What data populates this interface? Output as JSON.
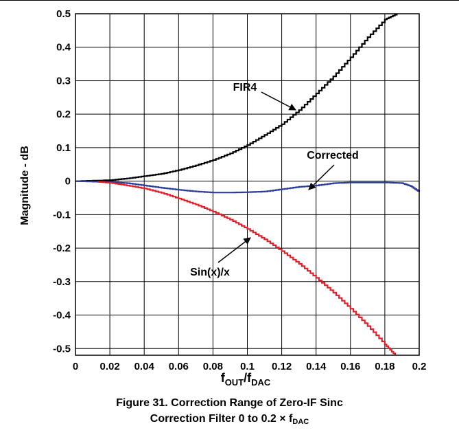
{
  "chart_data": {
    "type": "line",
    "xlabel": {
      "main": "f",
      "sub1": "OUT",
      "sep": "/f",
      "sub2": "DAC"
    },
    "ylabel": "Magnitude - dB",
    "xlim": [
      0,
      0.2
    ],
    "ylim": [
      -0.52,
      0.5
    ],
    "grid": true,
    "x_ticks": [
      "0",
      "0.02",
      "0.04",
      "0.06",
      "0.08",
      "0.1",
      "0.12",
      "0.14",
      "0.16",
      "0.18",
      "0.2"
    ],
    "y_ticks": [
      "0.5",
      "0.4",
      "0.3",
      "0.2",
      "0.1",
      "0",
      "-0.1",
      "-0.2",
      "-0.3",
      "-0.4",
      "-0.5"
    ],
    "series": [
      {
        "name": "FIR4",
        "color": "#000000",
        "step": true,
        "x": [
          0,
          0.02,
          0.03,
          0.04,
          0.05,
          0.06,
          0.07,
          0.08,
          0.09,
          0.1,
          0.11,
          0.12,
          0.13,
          0.14,
          0.15,
          0.16,
          0.17,
          0.18,
          0.187
        ],
        "y": [
          0,
          0.003,
          0.008,
          0.015,
          0.022,
          0.033,
          0.047,
          0.063,
          0.083,
          0.108,
          0.138,
          0.17,
          0.212,
          0.262,
          0.313,
          0.37,
          0.43,
          0.483,
          0.5
        ]
      },
      {
        "name": "Corrected",
        "color": "#2b3f9a",
        "step": true,
        "x": [
          0,
          0.02,
          0.03,
          0.04,
          0.05,
          0.06,
          0.07,
          0.08,
          0.09,
          0.1,
          0.11,
          0.12,
          0.13,
          0.14,
          0.15,
          0.16,
          0.17,
          0.18,
          0.19,
          0.195,
          0.2
        ],
        "y": [
          0,
          -0.003,
          -0.006,
          -0.013,
          -0.02,
          -0.026,
          -0.031,
          -0.034,
          -0.034,
          -0.033,
          -0.031,
          -0.024,
          -0.017,
          -0.013,
          -0.006,
          -0.004,
          -0.004,
          -0.004,
          -0.006,
          -0.015,
          -0.032
        ]
      },
      {
        "name": "Sin(x)/x",
        "color": "#e0202a",
        "step": true,
        "x": [
          0.013,
          0.02,
          0.03,
          0.04,
          0.05,
          0.06,
          0.07,
          0.08,
          0.09,
          0.1,
          0.11,
          0.12,
          0.13,
          0.14,
          0.15,
          0.16,
          0.17,
          0.18,
          0.186
        ],
        "y": [
          -0.002,
          -0.005,
          -0.013,
          -0.022,
          -0.035,
          -0.052,
          -0.07,
          -0.091,
          -0.115,
          -0.143,
          -0.174,
          -0.209,
          -0.247,
          -0.289,
          -0.333,
          -0.381,
          -0.433,
          -0.488,
          -0.52
        ]
      }
    ],
    "annotations": [
      {
        "text": "FIR4",
        "target": "FIR4"
      },
      {
        "text": "Corrected",
        "target": "Corrected"
      },
      {
        "text": "Sin(x)/x",
        "target": "Sin(x)/x"
      }
    ]
  },
  "caption": {
    "line1": "Figure 31. Correction Range of Zero-IF Sinc",
    "line2_prefix": "Correction Filter 0 to 0.2 × f",
    "line2_sub": "DAC"
  }
}
